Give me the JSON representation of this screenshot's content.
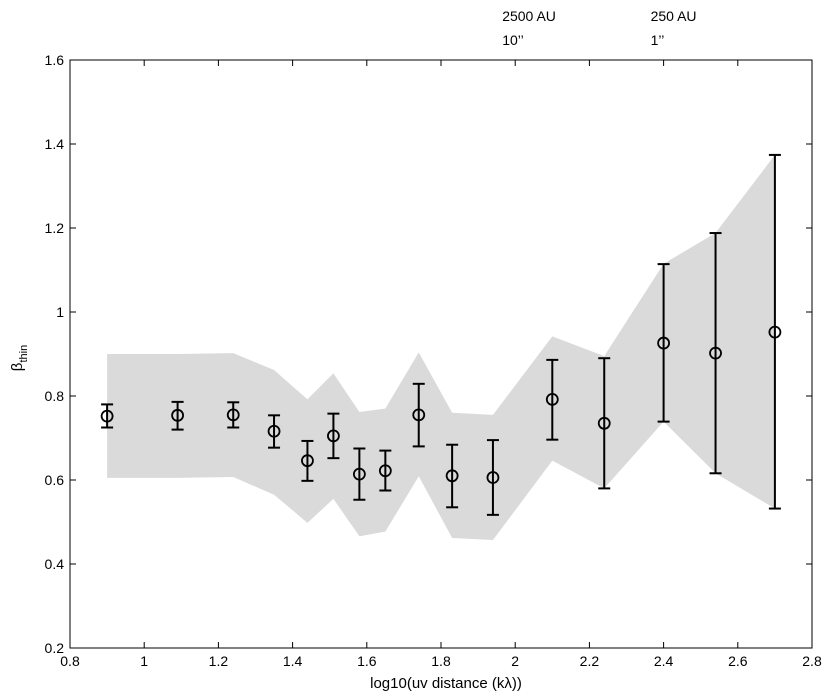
{
  "chart_data": {
    "type": "scatter",
    "xlabel": "log10(uv distance (kλ))",
    "ylabel": "β",
    "ylabel_sub": "thin",
    "xlim": [
      0.8,
      2.8
    ],
    "ylim": [
      0.2,
      1.6
    ],
    "xticks": [
      "0.8",
      "1",
      "1.2",
      "1.4",
      "1.6",
      "1.8",
      "2",
      "2.2",
      "2.4",
      "2.6",
      "2.8"
    ],
    "yticks": [
      "0.2",
      "0.4",
      "0.6",
      "0.8",
      "1",
      "1.2",
      "1.4",
      "1.6"
    ],
    "top_axis": [
      {
        "x": 2.0,
        "line1": "2500 AU",
        "line2": "10’’"
      },
      {
        "x": 2.4,
        "line1": "250 AU",
        "line2": "1’’"
      }
    ],
    "grid": false,
    "colors": {
      "band": "#dadada",
      "marker": "#000000"
    },
    "series": [
      {
        "points": [
          {
            "x": 0.9,
            "y": 0.752,
            "ylo": 0.725,
            "yhi": 0.78
          },
          {
            "x": 1.09,
            "y": 0.754,
            "ylo": 0.72,
            "yhi": 0.786
          },
          {
            "x": 1.24,
            "y": 0.755,
            "ylo": 0.725,
            "yhi": 0.785
          },
          {
            "x": 1.35,
            "y": 0.716,
            "ylo": 0.677,
            "yhi": 0.754
          },
          {
            "x": 1.44,
            "y": 0.646,
            "ylo": 0.598,
            "yhi": 0.693
          },
          {
            "x": 1.51,
            "y": 0.705,
            "ylo": 0.652,
            "yhi": 0.758
          },
          {
            "x": 1.58,
            "y": 0.614,
            "ylo": 0.553,
            "yhi": 0.675
          },
          {
            "x": 1.65,
            "y": 0.622,
            "ylo": 0.575,
            "yhi": 0.67
          },
          {
            "x": 1.74,
            "y": 0.755,
            "ylo": 0.68,
            "yhi": 0.829
          },
          {
            "x": 1.83,
            "y": 0.61,
            "ylo": 0.535,
            "yhi": 0.684
          },
          {
            "x": 1.94,
            "y": 0.606,
            "ylo": 0.517,
            "yhi": 0.695
          },
          {
            "x": 2.1,
            "y": 0.792,
            "ylo": 0.696,
            "yhi": 0.886
          },
          {
            "x": 2.24,
            "y": 0.735,
            "ylo": 0.58,
            "yhi": 0.89
          },
          {
            "x": 2.4,
            "y": 0.926,
            "ylo": 0.739,
            "yhi": 1.114
          },
          {
            "x": 2.54,
            "y": 0.902,
            "ylo": 0.616,
            "yhi": 1.188
          },
          {
            "x": 2.7,
            "y": 0.952,
            "ylo": 0.532,
            "yhi": 1.374
          }
        ]
      }
    ],
    "band": {
      "x": [
        0.9,
        1.09,
        1.24,
        1.35,
        1.44,
        1.51,
        1.58,
        1.65,
        1.74,
        1.83,
        1.94,
        2.1,
        2.24,
        2.4,
        2.54,
        2.7
      ],
      "upper": [
        0.9,
        0.9,
        0.902,
        0.862,
        0.792,
        0.854,
        0.762,
        0.77,
        0.904,
        0.76,
        0.755,
        0.942,
        0.895,
        1.115,
        1.188,
        1.374
      ],
      "lower": [
        0.605,
        0.605,
        0.607,
        0.565,
        0.498,
        0.555,
        0.466,
        0.477,
        0.609,
        0.462,
        0.457,
        0.646,
        0.58,
        0.739,
        0.616,
        0.532
      ]
    }
  }
}
